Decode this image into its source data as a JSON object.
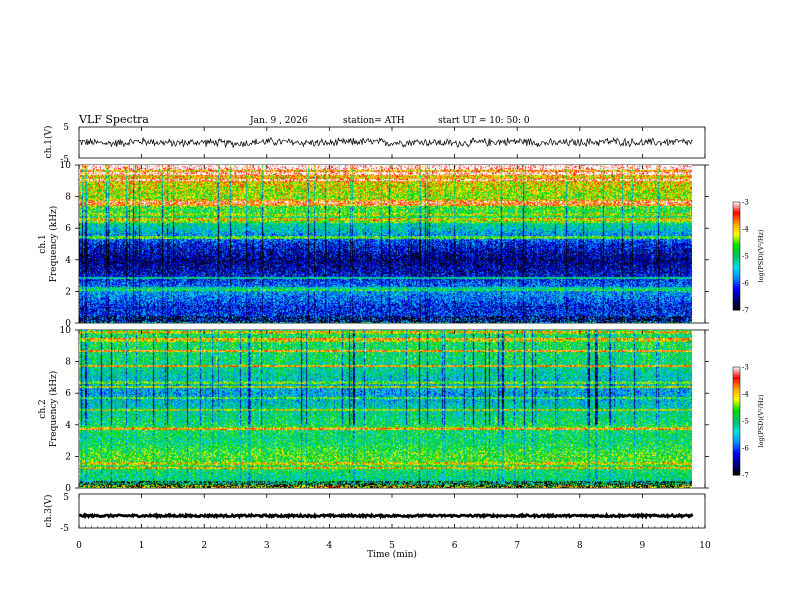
{
  "header": {
    "title": "VLF  Spectra",
    "date": "Jan. 9  , 2026",
    "station": "station= ATH",
    "start_ut": "start  UT =    10: 50: 0"
  },
  "chart_data": [
    {
      "type": "line",
      "id": "ch1-waveform",
      "ylabel": "ch.1(V)",
      "ylim": [
        -5,
        5
      ],
      "yticks": [
        "5",
        "-5"
      ],
      "x": [
        0,
        0.5,
        1,
        1.5,
        2,
        2.5,
        3,
        3.5,
        4,
        4.5,
        5,
        5.5,
        6,
        6.5,
        7,
        7.5,
        8,
        8.5,
        9,
        9.5,
        9.8
      ],
      "values": [
        0.2,
        -0.3,
        0.4,
        -0.2,
        0.1,
        -0.4,
        0.3,
        0.0,
        -0.2,
        0.3,
        -0.1,
        0.2,
        -0.3,
        0.1,
        0.4,
        -0.2,
        0.0,
        0.3,
        -0.1,
        0.2,
        0.0
      ],
      "envelope_v": 1.6,
      "color": "#000000"
    },
    {
      "type": "heatmap",
      "id": "ch1-spectrogram",
      "ylabel": [
        "ch.1",
        "Frequency  (kHz)"
      ],
      "ylim": [
        0,
        10
      ],
      "yticks": [
        "0",
        "2",
        "4",
        "6",
        "8",
        "10"
      ],
      "profile_freq_khz": [
        0,
        1,
        2,
        3,
        4,
        5,
        6,
        7,
        8,
        9,
        10
      ],
      "profile_log_psd": [
        -6.0,
        -6.2,
        -5.6,
        -6.3,
        -6.6,
        -6.2,
        -5.3,
        -4.8,
        -4.4,
        -4.0,
        -3.8
      ],
      "colorbar": {
        "label": "log(PSD)(V²/Hz)",
        "range": [
          -7,
          -3
        ],
        "ticks": [
          "-3",
          "-4",
          "-5",
          "-6",
          "-7"
        ]
      }
    },
    {
      "type": "heatmap",
      "id": "ch2-spectrogram",
      "ylabel": [
        "ch.2",
        "Frequency  (kHz)"
      ],
      "ylim": [
        0,
        10
      ],
      "yticks": [
        "0",
        "2",
        "4",
        "6",
        "8",
        "10"
      ],
      "profile_freq_khz": [
        0,
        1,
        2,
        3,
        4,
        5,
        6,
        7,
        8,
        9,
        10
      ],
      "profile_log_psd": [
        -5.2,
        -5.0,
        -4.6,
        -5.0,
        -4.9,
        -5.2,
        -5.6,
        -5.3,
        -5.0,
        -4.9,
        -4.9
      ],
      "colorbar": {
        "label": "log(PSD)(V²/Hz)",
        "range": [
          -7,
          -3
        ],
        "ticks": [
          "-3",
          "-4",
          "-5",
          "-6",
          "-7"
        ]
      }
    },
    {
      "type": "line",
      "id": "ch3-waveform",
      "ylabel": "ch.3(V)",
      "ylim": [
        -5,
        5
      ],
      "yticks": [
        "5",
        "-5"
      ],
      "x": [
        0,
        9.8
      ],
      "values": [
        -1.4,
        -1.4
      ],
      "envelope_v": 0.3,
      "color": "#000000"
    }
  ],
  "xaxis": {
    "label": "Time  (min)",
    "range": [
      0,
      10
    ],
    "ticks": [
      "0",
      "1",
      "2",
      "3",
      "4",
      "5",
      "6",
      "7",
      "8",
      "9",
      "10"
    ]
  },
  "colors": {
    "scale": [
      "#000000",
      "#000080",
      "#0000ff",
      "#0090ff",
      "#00e0e0",
      "#00c060",
      "#00e000",
      "#ffff00",
      "#ffa000",
      "#ff0000",
      "#ffffff"
    ]
  }
}
